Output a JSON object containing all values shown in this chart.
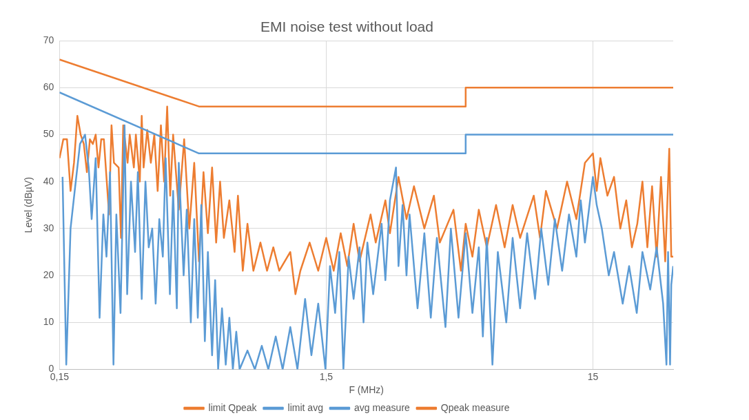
{
  "chart_data": {
    "type": "line",
    "title": "EMI noise test without load",
    "xlabel": "F (MHz)",
    "ylabel": "Level (dBµV)",
    "log": "x",
    "grid": true,
    "legend": "bottom",
    "marker": "none",
    "line_style": "solid",
    "xlim": [
      0.15,
      30
    ],
    "xticks": [
      {
        "value": 0.15,
        "label": "0,15"
      },
      {
        "value": 1.5,
        "label": "1,5"
      },
      15
    ],
    "ylim": [
      0,
      70
    ],
    "yticks": [
      0,
      10,
      20,
      30,
      40,
      50,
      60,
      70
    ],
    "series": [
      {
        "name": "limit Qpeak",
        "color": "#ed7d31",
        "x": [
          0.15,
          0.5,
          5,
          5,
          30
        ],
        "values": [
          66,
          56,
          56,
          60,
          60
        ]
      },
      {
        "name": "limit avg",
        "color": "#5b9bd5",
        "x": [
          0.15,
          0.5,
          5,
          5,
          30
        ],
        "values": [
          59,
          46,
          46,
          50,
          50
        ]
      },
      {
        "name": "avg measure",
        "color": "#5b9bd5",
        "x": [
          0.154,
          0.159,
          0.165,
          0.171,
          0.179,
          0.187,
          0.193,
          0.198,
          0.205,
          0.212,
          0.219,
          0.225,
          0.232,
          0.239,
          0.245,
          0.254,
          0.263,
          0.269,
          0.278,
          0.288,
          0.295,
          0.305,
          0.315,
          0.324,
          0.334,
          0.344,
          0.355,
          0.366,
          0.375,
          0.389,
          0.4,
          0.413,
          0.42,
          0.438,
          0.45,
          0.466,
          0.48,
          0.495,
          0.51,
          0.526,
          0.54,
          0.56,
          0.575,
          0.59,
          0.61,
          0.63,
          0.65,
          0.67,
          0.69,
          0.71,
          0.76,
          0.81,
          0.86,
          0.91,
          0.97,
          1.03,
          1.1,
          1.17,
          1.25,
          1.32,
          1.4,
          1.49,
          1.55,
          1.62,
          1.68,
          1.74,
          1.82,
          1.9,
          2.0,
          2.07,
          2.14,
          2.25,
          2.42,
          2.5,
          2.6,
          2.74,
          2.8,
          2.9,
          3.0,
          3.08,
          3.3,
          3.5,
          3.7,
          3.9,
          4.2,
          4.4,
          4.7,
          5.0,
          5.3,
          5.6,
          5.8,
          6.0,
          6.3,
          6.6,
          7.1,
          7.5,
          8.0,
          8.5,
          9.1,
          9.6,
          10.2,
          10.8,
          11.5,
          12.2,
          13.0,
          13.5,
          14,
          15,
          15.5,
          16.2,
          17.2,
          18,
          19.4,
          20.5,
          21.9,
          23,
          24.6,
          26,
          27.5,
          28.3,
          28.7,
          29.2,
          29.5,
          30
        ],
        "values": [
          41,
          1,
          30,
          38,
          48,
          50,
          43,
          32,
          45,
          11,
          33,
          24,
          42,
          1,
          33,
          12,
          52,
          16,
          40,
          25,
          42,
          15,
          40,
          26,
          30,
          14,
          32,
          24,
          45,
          16,
          38,
          13,
          44,
          20,
          34,
          10,
          32,
          11,
          35,
          6,
          25,
          3,
          19,
          0,
          13,
          1,
          11,
          0,
          8,
          0,
          4,
          0,
          5,
          0,
          7,
          0,
          9,
          0,
          15,
          3,
          14,
          0,
          22,
          12,
          25,
          0,
          24,
          15,
          26,
          10,
          27,
          16,
          31,
          19,
          36,
          43,
          22,
          35,
          20,
          33,
          13,
          29,
          11,
          28,
          9,
          30,
          11,
          29,
          12,
          26,
          7,
          28,
          1,
          25,
          10,
          28,
          13,
          29,
          15,
          30,
          18,
          32,
          21,
          33,
          24,
          36,
          27,
          41,
          35,
          30,
          20,
          25,
          14,
          22,
          12,
          25,
          17,
          26,
          14,
          1,
          25,
          1,
          18,
          22
        ]
      },
      {
        "name": "Qpeak measure",
        "color": "#ed7d31",
        "x": [
          0.15,
          0.155,
          0.16,
          0.165,
          0.17,
          0.175,
          0.18,
          0.185,
          0.19,
          0.195,
          0.2,
          0.205,
          0.21,
          0.215,
          0.22,
          0.23,
          0.235,
          0.24,
          0.25,
          0.255,
          0.26,
          0.27,
          0.275,
          0.285,
          0.29,
          0.3,
          0.305,
          0.31,
          0.32,
          0.33,
          0.34,
          0.35,
          0.36,
          0.37,
          0.38,
          0.39,
          0.4,
          0.42,
          0.44,
          0.46,
          0.48,
          0.5,
          0.52,
          0.54,
          0.56,
          0.58,
          0.6,
          0.62,
          0.65,
          0.68,
          0.7,
          0.73,
          0.76,
          0.8,
          0.85,
          0.9,
          0.95,
          1.0,
          1.1,
          1.15,
          1.2,
          1.3,
          1.4,
          1.5,
          1.6,
          1.7,
          1.8,
          1.9,
          2.0,
          2.2,
          2.3,
          2.5,
          2.6,
          2.8,
          3.0,
          3.2,
          3.5,
          3.8,
          4.0,
          4.5,
          4.8,
          5.0,
          5.3,
          5.6,
          6.0,
          6.5,
          7.0,
          7.5,
          8.0,
          9.0,
          9.5,
          10,
          11,
          12,
          13,
          14,
          15,
          15.5,
          16,
          17,
          18,
          19,
          20,
          21,
          22,
          23,
          24,
          25,
          26,
          27,
          28,
          29,
          29.5,
          30
        ],
        "values": [
          45,
          49,
          49,
          38,
          44,
          54,
          50,
          48,
          42,
          49,
          48,
          50,
          43,
          49,
          49,
          33,
          52,
          44,
          43,
          28,
          52,
          44,
          50,
          43,
          50,
          40,
          54,
          43,
          51,
          44,
          50,
          38,
          52,
          40,
          56,
          37,
          50,
          34,
          49,
          30,
          44,
          23,
          42,
          29,
          43,
          27,
          40,
          28,
          36,
          25,
          37,
          21,
          31,
          21,
          27,
          21,
          26,
          21,
          25,
          16,
          21,
          27,
          21,
          28,
          21,
          29,
          22,
          31,
          23,
          33,
          27,
          36,
          29,
          41,
          32,
          39,
          30,
          37,
          27,
          34,
          21,
          31,
          24,
          34,
          26,
          35,
          26,
          35,
          28,
          37,
          28,
          38,
          30,
          40,
          32,
          44,
          46,
          38,
          45,
          37,
          41,
          30,
          36,
          26,
          31,
          40,
          26,
          39,
          24,
          41,
          23,
          47,
          24,
          24
        ]
      }
    ]
  }
}
